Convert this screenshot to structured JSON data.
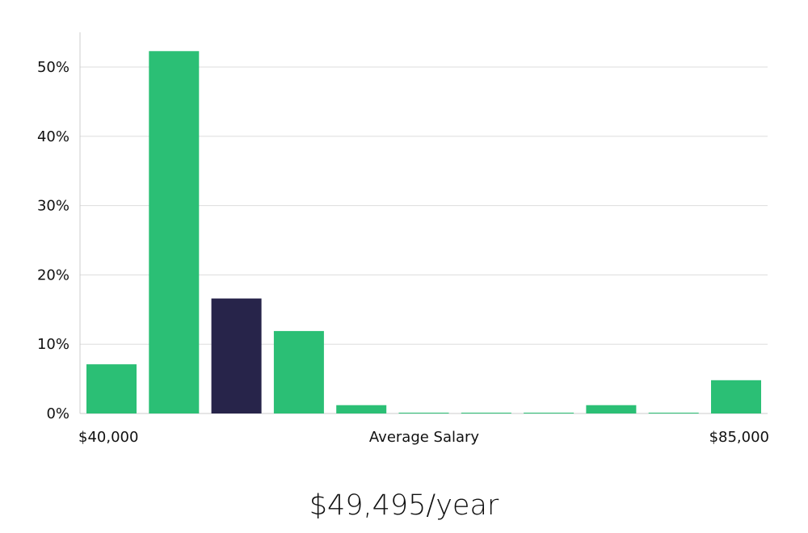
{
  "chart_data": {
    "type": "bar",
    "title": "",
    "xlabel": "Average Salary",
    "ylabel": "",
    "x_min_label": "$40,000",
    "x_max_label": "$85,000",
    "x_range": [
      40000,
      85000
    ],
    "bin_count": 11,
    "values": [
      7.1,
      52.3,
      16.6,
      11.9,
      1.2,
      0.1,
      0.1,
      0.1,
      1.2,
      0.1,
      4.8
    ],
    "highlight_index": 2,
    "ylim": [
      0,
      55
    ],
    "yticks": [
      0,
      10,
      20,
      30,
      40,
      50
    ],
    "ytick_labels": [
      "0%",
      "10%",
      "20%",
      "30%",
      "40%",
      "50%"
    ],
    "grid": true,
    "colors": {
      "bar": "#2bbf75",
      "bar_highlight": "#27244a",
      "grid": "#dddddd",
      "axis": "#cccccc"
    }
  },
  "salary": {
    "value": "$49,495/year"
  }
}
